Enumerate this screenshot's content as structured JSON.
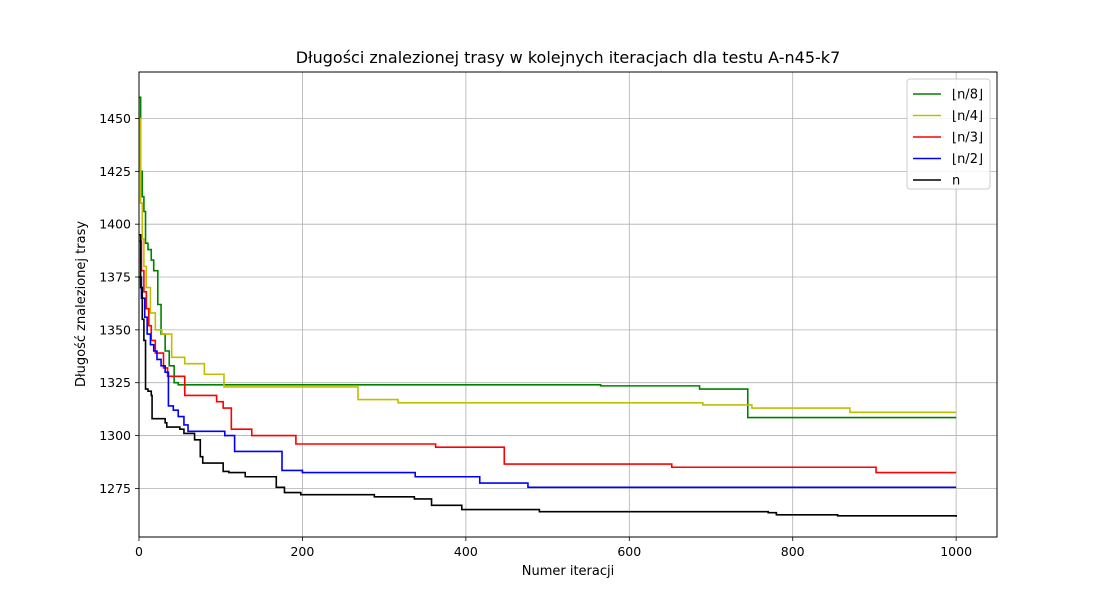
{
  "chart_data": {
    "type": "line",
    "title": "Długości znalezionej trasy w kolejnych iteracjach dla testu A-n45-k7",
    "xlabel": "Numer iteracji",
    "ylabel": "Długość znalezionej trasy",
    "xlim": [
      0,
      1050
    ],
    "ylim": [
      1252,
      1472
    ],
    "xticks": [
      0,
      200,
      400,
      600,
      800,
      1000
    ],
    "yticks": [
      1275,
      1300,
      1325,
      1350,
      1375,
      1400,
      1425,
      1450
    ],
    "grid": true,
    "legend_position": "top-right",
    "series": [
      {
        "name": "⌊n/8⌋",
        "color": "#008000",
        "points": [
          [
            0,
            1460
          ],
          [
            2,
            1425
          ],
          [
            4,
            1413
          ],
          [
            6,
            1406
          ],
          [
            8,
            1391
          ],
          [
            11,
            1388
          ],
          [
            15,
            1383
          ],
          [
            18,
            1378
          ],
          [
            23,
            1362
          ],
          [
            27,
            1348
          ],
          [
            32,
            1340
          ],
          [
            37,
            1333
          ],
          [
            43,
            1325
          ],
          [
            48,
            1324
          ],
          [
            565,
            1323.5
          ],
          [
            686,
            1322
          ],
          [
            745,
            1308.5
          ],
          [
            1000,
            1308.5
          ]
        ]
      },
      {
        "name": "⌊n/4⌋",
        "color": "#bfbf00",
        "points": [
          [
            0,
            1450
          ],
          [
            2,
            1410
          ],
          [
            4,
            1393
          ],
          [
            6,
            1380
          ],
          [
            9,
            1370
          ],
          [
            14,
            1358
          ],
          [
            20,
            1350
          ],
          [
            28,
            1348
          ],
          [
            40,
            1337
          ],
          [
            56,
            1334
          ],
          [
            80,
            1329
          ],
          [
            104,
            1323
          ],
          [
            268,
            1317
          ],
          [
            317,
            1315.5
          ],
          [
            690,
            1314.5
          ],
          [
            750,
            1313
          ],
          [
            870,
            1311
          ],
          [
            1000,
            1311
          ]
        ]
      },
      {
        "name": "⌊n/3⌋",
        "color": "#ff0000",
        "points": [
          [
            0,
            1392
          ],
          [
            3,
            1378
          ],
          [
            6,
            1368
          ],
          [
            9,
            1360
          ],
          [
            12,
            1352
          ],
          [
            15,
            1345
          ],
          [
            20,
            1339
          ],
          [
            30,
            1332
          ],
          [
            35,
            1328
          ],
          [
            50,
            1328
          ],
          [
            56,
            1319
          ],
          [
            95,
            1316
          ],
          [
            103,
            1313
          ],
          [
            113,
            1303
          ],
          [
            138,
            1300
          ],
          [
            192,
            1296
          ],
          [
            363,
            1294.5
          ],
          [
            447,
            1286.5
          ],
          [
            652,
            1285
          ],
          [
            902,
            1282.5
          ],
          [
            1000,
            1282.5
          ]
        ]
      },
      {
        "name": "⌊n/2⌋",
        "color": "#0000ff",
        "points": [
          [
            0,
            1375
          ],
          [
            3,
            1365
          ],
          [
            7,
            1356
          ],
          [
            10,
            1348
          ],
          [
            14,
            1343
          ],
          [
            18,
            1340
          ],
          [
            22,
            1336
          ],
          [
            27,
            1333
          ],
          [
            32,
            1330
          ],
          [
            36,
            1314
          ],
          [
            42,
            1312
          ],
          [
            48,
            1309
          ],
          [
            55,
            1305
          ],
          [
            60,
            1302
          ],
          [
            105,
            1300
          ],
          [
            117,
            1292.5
          ],
          [
            175,
            1283.5
          ],
          [
            200,
            1282.5
          ],
          [
            338,
            1280.5
          ],
          [
            417,
            1277.5
          ],
          [
            476,
            1275.5
          ],
          [
            1000,
            1275.5
          ]
        ]
      },
      {
        "name": "n",
        "color": "#000000",
        "points": [
          [
            0,
            1395
          ],
          [
            2,
            1370
          ],
          [
            4,
            1355
          ],
          [
            6,
            1345
          ],
          [
            8,
            1322
          ],
          [
            11,
            1321
          ],
          [
            15,
            1319
          ],
          [
            16,
            1308
          ],
          [
            32,
            1306
          ],
          [
            34,
            1304
          ],
          [
            50,
            1303
          ],
          [
            55,
            1301
          ],
          [
            68,
            1298
          ],
          [
            75,
            1290
          ],
          [
            78,
            1287
          ],
          [
            103,
            1283
          ],
          [
            110,
            1282.5
          ],
          [
            130,
            1280.5
          ],
          [
            168,
            1275.5
          ],
          [
            178,
            1273
          ],
          [
            198,
            1272
          ],
          [
            288,
            1271
          ],
          [
            337,
            1270
          ],
          [
            358,
            1267
          ],
          [
            395,
            1265
          ],
          [
            490,
            1264
          ],
          [
            770,
            1263.5
          ],
          [
            780,
            1262.5
          ],
          [
            855,
            1262
          ],
          [
            1000,
            1261.5
          ]
        ]
      }
    ]
  }
}
